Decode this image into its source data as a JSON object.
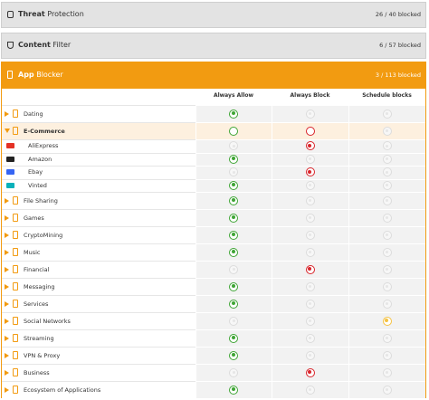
{
  "panels": [
    {
      "title_bold": "Threat",
      "title_rest": "Protection",
      "status": "26 / 40 blocked"
    },
    {
      "title_bold": "Content",
      "title_rest": "Filter",
      "status": "6 / 57 blocked"
    }
  ],
  "app_blocker": {
    "title_bold": "App",
    "title_rest": "Blocker",
    "status": "3 / 113 blocked",
    "columns": [
      "Always Allow",
      "Always Block",
      "Schedule blocks"
    ],
    "rows": [
      {
        "name": "Dating",
        "state": "allow"
      },
      {
        "name": "E-Commerce",
        "state": "mixed",
        "expanded": true
      },
      {
        "name": "AliExpress",
        "state": "block",
        "child": true,
        "logo_color": "#e43225"
      },
      {
        "name": "Amazon",
        "state": "allow",
        "child": true,
        "logo_color": "#222222"
      },
      {
        "name": "Ebay",
        "state": "block",
        "child": true,
        "logo_color": "#3665f3"
      },
      {
        "name": "Vinted",
        "state": "allow",
        "child": true,
        "logo_color": "#09b1ba"
      },
      {
        "name": "File Sharing",
        "state": "allow"
      },
      {
        "name": "Games",
        "state": "allow"
      },
      {
        "name": "CryptoMining",
        "state": "allow"
      },
      {
        "name": "Music",
        "state": "allow"
      },
      {
        "name": "Financial",
        "state": "block"
      },
      {
        "name": "Messaging",
        "state": "allow"
      },
      {
        "name": "Services",
        "state": "allow"
      },
      {
        "name": "Social Networks",
        "state": "schedule"
      },
      {
        "name": "Streaming",
        "state": "allow"
      },
      {
        "name": "VPN & Proxy",
        "state": "allow"
      },
      {
        "name": "Business",
        "state": "block"
      },
      {
        "name": "Ecosystem of Applications",
        "state": "allow"
      }
    ]
  }
}
